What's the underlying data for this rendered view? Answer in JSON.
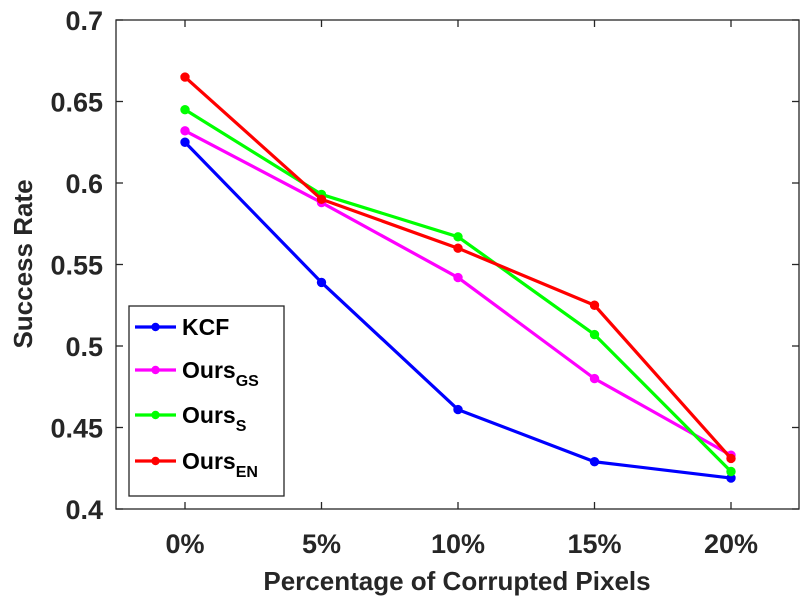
{
  "chart_data": {
    "type": "line",
    "title": "",
    "xlabel": "Percentage of Corrupted Pixels",
    "ylabel": "Success Rate",
    "categories": [
      "0%",
      "5%",
      "10%",
      "15%",
      "20%"
    ],
    "ylim": [
      0.4,
      0.7
    ],
    "yticks": [
      "0.4",
      "0.45",
      "0.5",
      "0.55",
      "0.6",
      "0.65",
      "0.7"
    ],
    "ytick_values": [
      0.4,
      0.45,
      0.5,
      0.55,
      0.6,
      0.65,
      0.7
    ],
    "grid": false,
    "legend_position": "bottom-left",
    "series": [
      {
        "name": "KCF",
        "base": "KCF",
        "sub": "",
        "color": "#0000ff",
        "values": [
          0.625,
          0.539,
          0.461,
          0.429,
          0.419
        ]
      },
      {
        "name": "OursGS",
        "base": "Ours",
        "sub": "GS",
        "color": "#ff00ff",
        "values": [
          0.632,
          0.588,
          0.542,
          0.48,
          0.433
        ]
      },
      {
        "name": "OursS",
        "base": "Ours",
        "sub": "S",
        "color": "#00ff00",
        "values": [
          0.645,
          0.593,
          0.567,
          0.507,
          0.423
        ]
      },
      {
        "name": "OursEN",
        "base": "Ours",
        "sub": "EN",
        "color": "#ff0000",
        "values": [
          0.665,
          0.59,
          0.56,
          0.525,
          0.431
        ]
      }
    ]
  }
}
